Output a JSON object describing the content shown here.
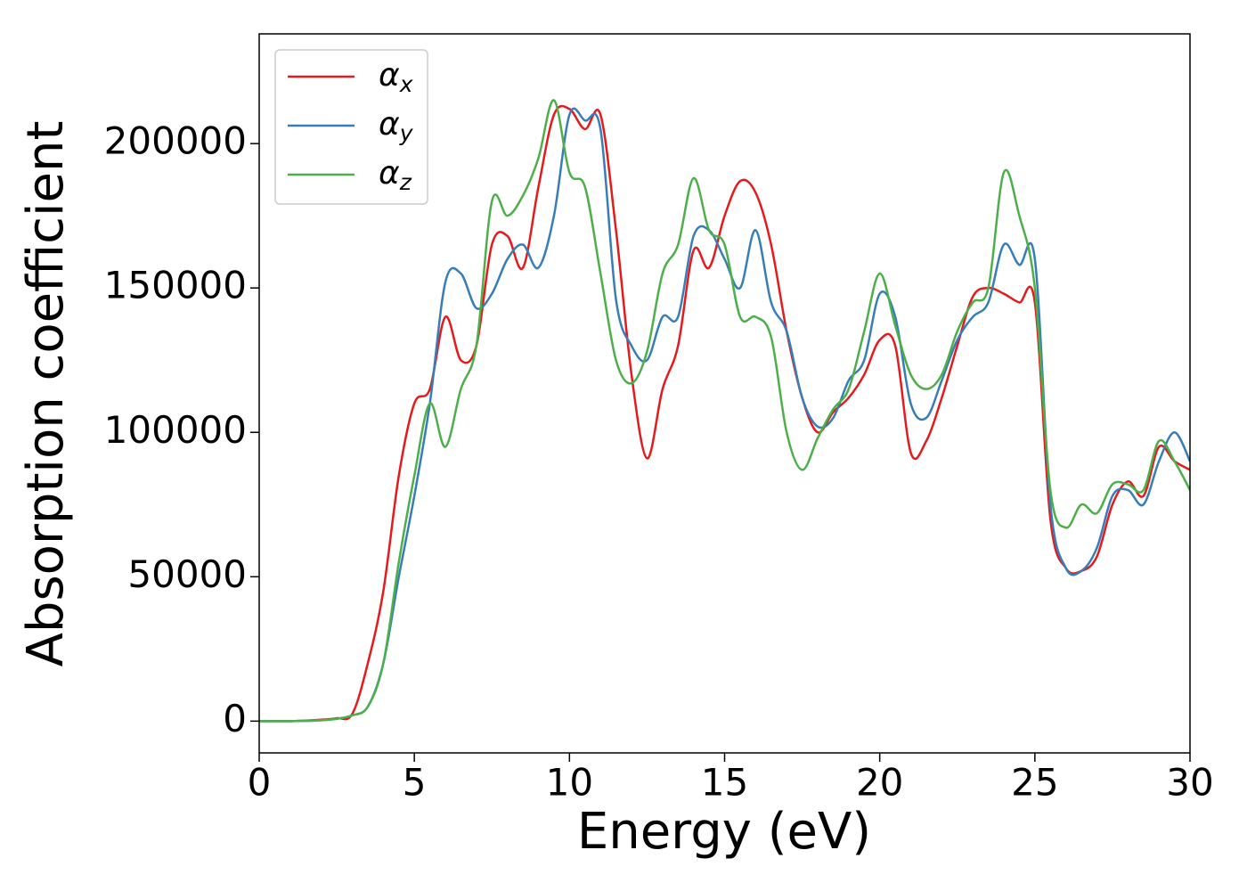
{
  "chart_data": {
    "type": "line",
    "xlabel": "Energy (eV)",
    "ylabel": "Absorption coefficient",
    "x": [
      0,
      0.5,
      1,
      1.5,
      2,
      2.5,
      3,
      3.5,
      4,
      4.5,
      5,
      5.5,
      6,
      6.5,
      7,
      7.5,
      8,
      8.5,
      9,
      9.5,
      10,
      10.5,
      11,
      11.5,
      12,
      12.5,
      13,
      13.5,
      14,
      14.5,
      15,
      15.5,
      16,
      16.5,
      17,
      17.5,
      18,
      18.5,
      19,
      19.5,
      20,
      20.5,
      21,
      21.5,
      22,
      22.5,
      23,
      23.5,
      24,
      24.5,
      25,
      25.5,
      26,
      26.5,
      27,
      27.5,
      28,
      28.5,
      29,
      29.5,
      30
    ],
    "series": [
      {
        "name": "αx",
        "color": "#e41a1c",
        "values": [
          0,
          0,
          0,
          200,
          500,
          1000,
          2500,
          20000,
          45000,
          85000,
          110000,
          115000,
          140000,
          125000,
          130000,
          165000,
          168000,
          157000,
          185000,
          210000,
          212000,
          205000,
          210000,
          170000,
          120000,
          91000,
          115000,
          130000,
          163000,
          157000,
          175000,
          187000,
          183000,
          165000,
          135000,
          112000,
          100000,
          107000,
          112000,
          120000,
          132000,
          130000,
          93000,
          97000,
          112000,
          130000,
          147000,
          150000,
          148000,
          145000,
          145000,
          70000,
          53000,
          52000,
          57000,
          75000,
          83000,
          78000,
          95000,
          90000,
          87000
        ]
      },
      {
        "name": "αy",
        "color": "#377eb8",
        "values": [
          0,
          0,
          0,
          100,
          300,
          800,
          2000,
          5000,
          20000,
          50000,
          78000,
          110000,
          152000,
          155000,
          143000,
          148000,
          160000,
          165000,
          157000,
          175000,
          210000,
          208000,
          205000,
          146000,
          130000,
          125000,
          140000,
          140000,
          168000,
          170000,
          160000,
          150000,
          170000,
          145000,
          135000,
          112000,
          102000,
          105000,
          118000,
          125000,
          148000,
          140000,
          110000,
          105000,
          118000,
          132000,
          140000,
          145000,
          165000,
          158000,
          160000,
          75000,
          53000,
          52000,
          60000,
          78000,
          80000,
          75000,
          90000,
          100000,
          90000
        ]
      },
      {
        "name": "αz",
        "color": "#4daf4a",
        "values": [
          0,
          0,
          0,
          100,
          300,
          800,
          2000,
          5000,
          20000,
          55000,
          85000,
          110000,
          95000,
          115000,
          130000,
          180000,
          175000,
          182000,
          195000,
          215000,
          190000,
          185000,
          155000,
          125000,
          117000,
          128000,
          155000,
          165000,
          188000,
          170000,
          165000,
          140000,
          140000,
          133000,
          100000,
          87000,
          98000,
          108000,
          115000,
          135000,
          155000,
          137000,
          120000,
          115000,
          120000,
          135000,
          145000,
          150000,
          190000,
          175000,
          150000,
          80000,
          67000,
          75000,
          72000,
          82000,
          82000,
          80000,
          97000,
          90000,
          80000
        ]
      }
    ],
    "xlim": [
      0,
      30
    ],
    "xticks": [
      0,
      5,
      10,
      15,
      20,
      25,
      30
    ],
    "ylim": [
      -11000,
      238000
    ],
    "yticks": [
      0,
      50000,
      100000,
      150000,
      200000
    ],
    "grid": false,
    "legend": "upper left"
  }
}
